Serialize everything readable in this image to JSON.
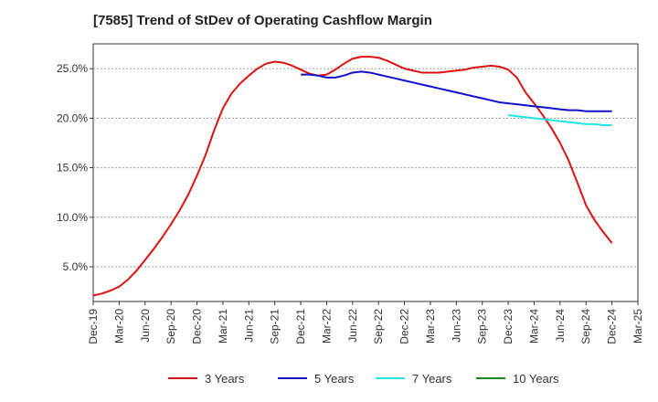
{
  "chart_data": {
    "type": "line",
    "title": "[7585]  Trend of StDev of Operating Cashflow Margin",
    "xlabel": "",
    "ylabel": "",
    "x_range": [
      "2019-12",
      "2025-03"
    ],
    "ylim": [
      1.5,
      27.5
    ],
    "y_ticks": [
      5.0,
      10.0,
      15.0,
      20.0,
      25.0
    ],
    "y_tick_labels": [
      "5.0%",
      "10.0%",
      "15.0%",
      "20.0%",
      "25.0%"
    ],
    "x_ticks": [
      "2019-12",
      "2020-03",
      "2020-06",
      "2020-09",
      "2020-12",
      "2021-03",
      "2021-06",
      "2021-09",
      "2021-12",
      "2022-03",
      "2022-06",
      "2022-09",
      "2022-12",
      "2023-03",
      "2023-06",
      "2023-09",
      "2023-12",
      "2024-03",
      "2024-06",
      "2024-09",
      "2024-12",
      "2025-03"
    ],
    "x_tick_labels": [
      "Dec-19",
      "Mar-20",
      "Jun-20",
      "Sep-20",
      "Dec-20",
      "Mar-21",
      "Jun-21",
      "Sep-21",
      "Dec-21",
      "Mar-22",
      "Jun-22",
      "Sep-22",
      "Dec-22",
      "Mar-23",
      "Jun-23",
      "Sep-23",
      "Dec-23",
      "Mar-24",
      "Jun-24",
      "Sep-24",
      "Dec-24",
      "Mar-25"
    ],
    "grid": "horizontal dashed",
    "legend_position": "bottom",
    "series": [
      {
        "name": "3 Years",
        "color": "#dd1111",
        "points": [
          [
            "2019-12",
            2.1
          ],
          [
            "2020-01",
            2.3
          ],
          [
            "2020-02",
            2.6
          ],
          [
            "2020-03",
            3.0
          ],
          [
            "2020-04",
            3.7
          ],
          [
            "2020-05",
            4.6
          ],
          [
            "2020-06",
            5.7
          ],
          [
            "2020-07",
            6.8
          ],
          [
            "2020-08",
            8.0
          ],
          [
            "2020-09",
            9.3
          ],
          [
            "2020-10",
            10.7
          ],
          [
            "2020-11",
            12.3
          ],
          [
            "2020-12",
            14.2
          ],
          [
            "2021-01",
            16.3
          ],
          [
            "2021-02",
            18.8
          ],
          [
            "2021-03",
            21.0
          ],
          [
            "2021-04",
            22.5
          ],
          [
            "2021-05",
            23.5
          ],
          [
            "2021-06",
            24.3
          ],
          [
            "2021-07",
            25.0
          ],
          [
            "2021-08",
            25.5
          ],
          [
            "2021-09",
            25.7
          ],
          [
            "2021-10",
            25.6
          ],
          [
            "2021-11",
            25.3
          ],
          [
            "2021-12",
            24.9
          ],
          [
            "2022-01",
            24.5
          ],
          [
            "2022-02",
            24.3
          ],
          [
            "2022-03",
            24.4
          ],
          [
            "2022-04",
            24.9
          ],
          [
            "2022-05",
            25.5
          ],
          [
            "2022-06",
            26.0
          ],
          [
            "2022-07",
            26.2
          ],
          [
            "2022-08",
            26.2
          ],
          [
            "2022-09",
            26.1
          ],
          [
            "2022-10",
            25.8
          ],
          [
            "2022-11",
            25.4
          ],
          [
            "2022-12",
            25.0
          ],
          [
            "2023-01",
            24.8
          ],
          [
            "2023-02",
            24.6
          ],
          [
            "2023-03",
            24.6
          ],
          [
            "2023-04",
            24.6
          ],
          [
            "2023-05",
            24.7
          ],
          [
            "2023-06",
            24.8
          ],
          [
            "2023-07",
            24.9
          ],
          [
            "2023-08",
            25.1
          ],
          [
            "2023-09",
            25.2
          ],
          [
            "2023-10",
            25.3
          ],
          [
            "2023-11",
            25.2
          ],
          [
            "2023-12",
            24.9
          ],
          [
            "2024-01",
            24.1
          ],
          [
            "2024-02",
            22.6
          ],
          [
            "2024-03",
            21.5
          ],
          [
            "2024-04",
            20.3
          ],
          [
            "2024-05",
            19.0
          ],
          [
            "2024-06",
            17.5
          ],
          [
            "2024-07",
            15.7
          ],
          [
            "2024-08",
            13.5
          ],
          [
            "2024-09",
            11.2
          ],
          [
            "2024-10",
            9.7
          ],
          [
            "2024-11",
            8.5
          ],
          [
            "2024-12",
            7.4
          ]
        ]
      },
      {
        "name": "5 Years",
        "color": "#1111cc",
        "points": [
          [
            "2021-12",
            24.4
          ],
          [
            "2022-01",
            24.4
          ],
          [
            "2022-02",
            24.3
          ],
          [
            "2022-03",
            24.1
          ],
          [
            "2022-04",
            24.1
          ],
          [
            "2022-05",
            24.3
          ],
          [
            "2022-06",
            24.6
          ],
          [
            "2022-07",
            24.7
          ],
          [
            "2022-08",
            24.6
          ],
          [
            "2022-09",
            24.4
          ],
          [
            "2022-10",
            24.2
          ],
          [
            "2022-11",
            24.0
          ],
          [
            "2022-12",
            23.8
          ],
          [
            "2023-01",
            23.6
          ],
          [
            "2023-02",
            23.4
          ],
          [
            "2023-03",
            23.2
          ],
          [
            "2023-04",
            23.0
          ],
          [
            "2023-05",
            22.8
          ],
          [
            "2023-06",
            22.6
          ],
          [
            "2023-07",
            22.4
          ],
          [
            "2023-08",
            22.2
          ],
          [
            "2023-09",
            22.0
          ],
          [
            "2023-10",
            21.8
          ],
          [
            "2023-11",
            21.6
          ],
          [
            "2023-12",
            21.5
          ],
          [
            "2024-01",
            21.4
          ],
          [
            "2024-02",
            21.3
          ],
          [
            "2024-03",
            21.2
          ],
          [
            "2024-04",
            21.1
          ],
          [
            "2024-05",
            21.0
          ],
          [
            "2024-06",
            20.9
          ],
          [
            "2024-07",
            20.8
          ],
          [
            "2024-08",
            20.8
          ],
          [
            "2024-09",
            20.7
          ],
          [
            "2024-10",
            20.7
          ],
          [
            "2024-11",
            20.7
          ],
          [
            "2024-12",
            20.7
          ]
        ]
      },
      {
        "name": "7 Years",
        "color": "#22e5e5",
        "points": [
          [
            "2023-12",
            20.3
          ],
          [
            "2024-01",
            20.2
          ],
          [
            "2024-02",
            20.1
          ],
          [
            "2024-03",
            20.0
          ],
          [
            "2024-04",
            19.9
          ],
          [
            "2024-05",
            19.8
          ],
          [
            "2024-06",
            19.7
          ],
          [
            "2024-07",
            19.6
          ],
          [
            "2024-08",
            19.5
          ],
          [
            "2024-09",
            19.4
          ],
          [
            "2024-10",
            19.4
          ],
          [
            "2024-11",
            19.3
          ],
          [
            "2024-12",
            19.3
          ]
        ]
      },
      {
        "name": "10 Years",
        "color": "#228822",
        "points": []
      }
    ]
  }
}
